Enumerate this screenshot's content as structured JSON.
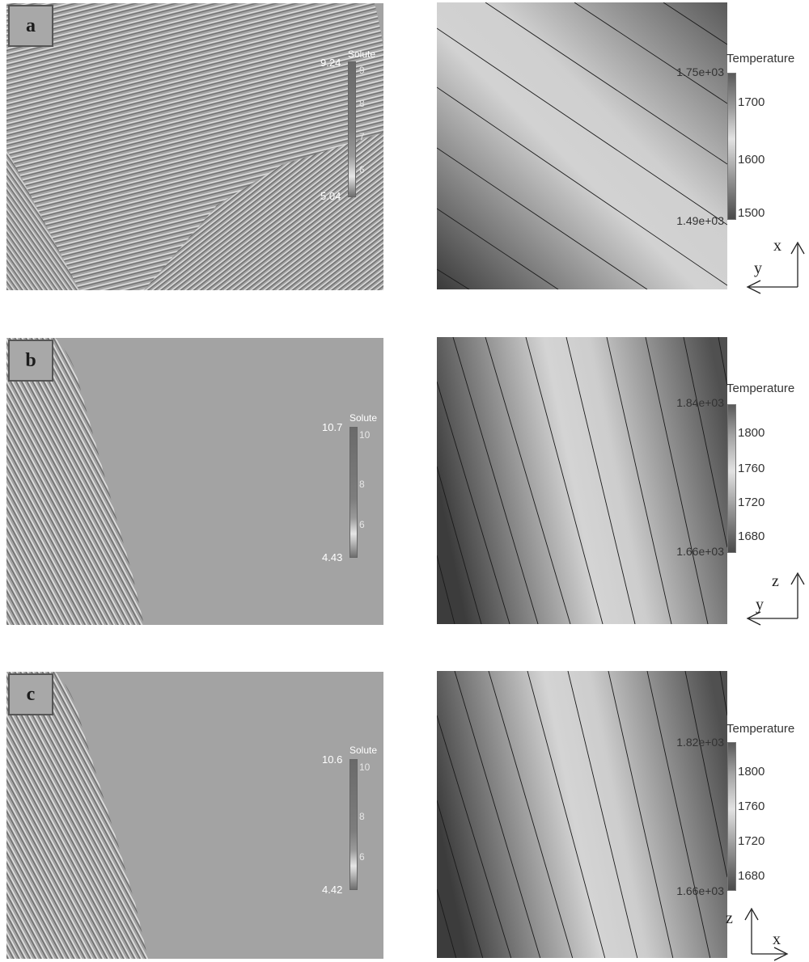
{
  "panels": [
    {
      "label": "a",
      "solute": {
        "title": "Solute",
        "max": "9.24",
        "min": "5.04",
        "ticks": [
          "9",
          "8",
          "7",
          "6"
        ]
      },
      "temperature": {
        "title": "Temperature",
        "max_label": "1.75e+03",
        "min_label": "1.49e+03",
        "ticks": [
          "1700",
          "1600",
          "1500"
        ]
      },
      "axes": {
        "vertical": "x",
        "horizontal": "y"
      }
    },
    {
      "label": "b",
      "solute": {
        "title": "Solute",
        "max": "10.7",
        "min": "4.43",
        "ticks": [
          "10",
          "8",
          "6"
        ]
      },
      "temperature": {
        "title": "Temperature",
        "max_label": "1.84e+03",
        "min_label": "1.66e+03",
        "ticks": [
          "1800",
          "1760",
          "1720",
          "1680"
        ]
      },
      "axes": {
        "vertical": "z",
        "horizontal": "y"
      }
    },
    {
      "label": "c",
      "solute": {
        "title": "Solute",
        "max": "10.6",
        "min": "4.42",
        "ticks": [
          "10",
          "8",
          "6"
        ]
      },
      "temperature": {
        "title": "Temperature",
        "max_label": "1.82e+03",
        "min_label": "1.66e+03",
        "ticks": [
          "1800",
          "1760",
          "1720",
          "1680"
        ]
      },
      "axes": {
        "vertical": "z",
        "horizontal": "x"
      }
    }
  ]
}
